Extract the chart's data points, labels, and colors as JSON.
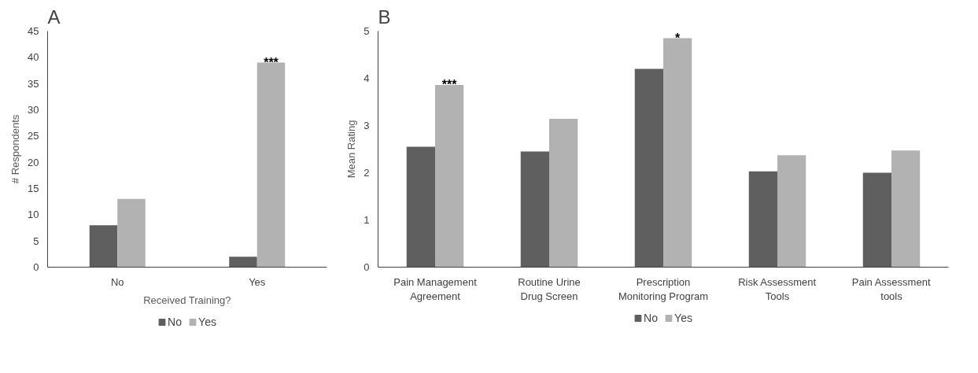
{
  "chart_data": [
    {
      "type": "bar",
      "title": "A",
      "xlabel": "Received Training?",
      "ylabel": "# Respondents",
      "categories": [
        "No",
        "Yes"
      ],
      "series": [
        {
          "name": "No",
          "color": "#5f5f5f",
          "values": [
            8,
            2
          ]
        },
        {
          "name": "Yes",
          "color": "#b2b2b2",
          "values": [
            13,
            39
          ]
        }
      ],
      "ylim": [
        0,
        45
      ],
      "yticks": [
        0,
        5,
        10,
        15,
        20,
        25,
        30,
        35,
        40,
        45
      ],
      "grid": false,
      "legend": "bottom",
      "annotations": [
        {
          "text": "***",
          "x": "Yes",
          "y": 39
        }
      ]
    },
    {
      "type": "bar",
      "title": "B",
      "ylabel": "Mean Rating",
      "categories": [
        "Pain Management Agreement",
        "Routine Urine Drug Screen",
        "Prescription Monitoring Program",
        "Risk Assessment Tools",
        "Pain Assessment tools"
      ],
      "series": [
        {
          "name": "No",
          "color": "#5f5f5f",
          "values": [
            2.55,
            2.45,
            4.2,
            2.03,
            2.0
          ]
        },
        {
          "name": "Yes",
          "color": "#b2b2b2",
          "values": [
            3.86,
            3.14,
            4.85,
            2.37,
            2.47
          ]
        }
      ],
      "ylim": [
        0,
        5
      ],
      "yticks": [
        0,
        1,
        2,
        3,
        4,
        5
      ],
      "grid": false,
      "legend": "bottom",
      "annotations": [
        {
          "text": "***",
          "x": "Pain Management Agreement",
          "y": 3.86
        },
        {
          "text": "*",
          "x": "Prescription Monitoring Program",
          "y": 4.85
        }
      ]
    }
  ]
}
